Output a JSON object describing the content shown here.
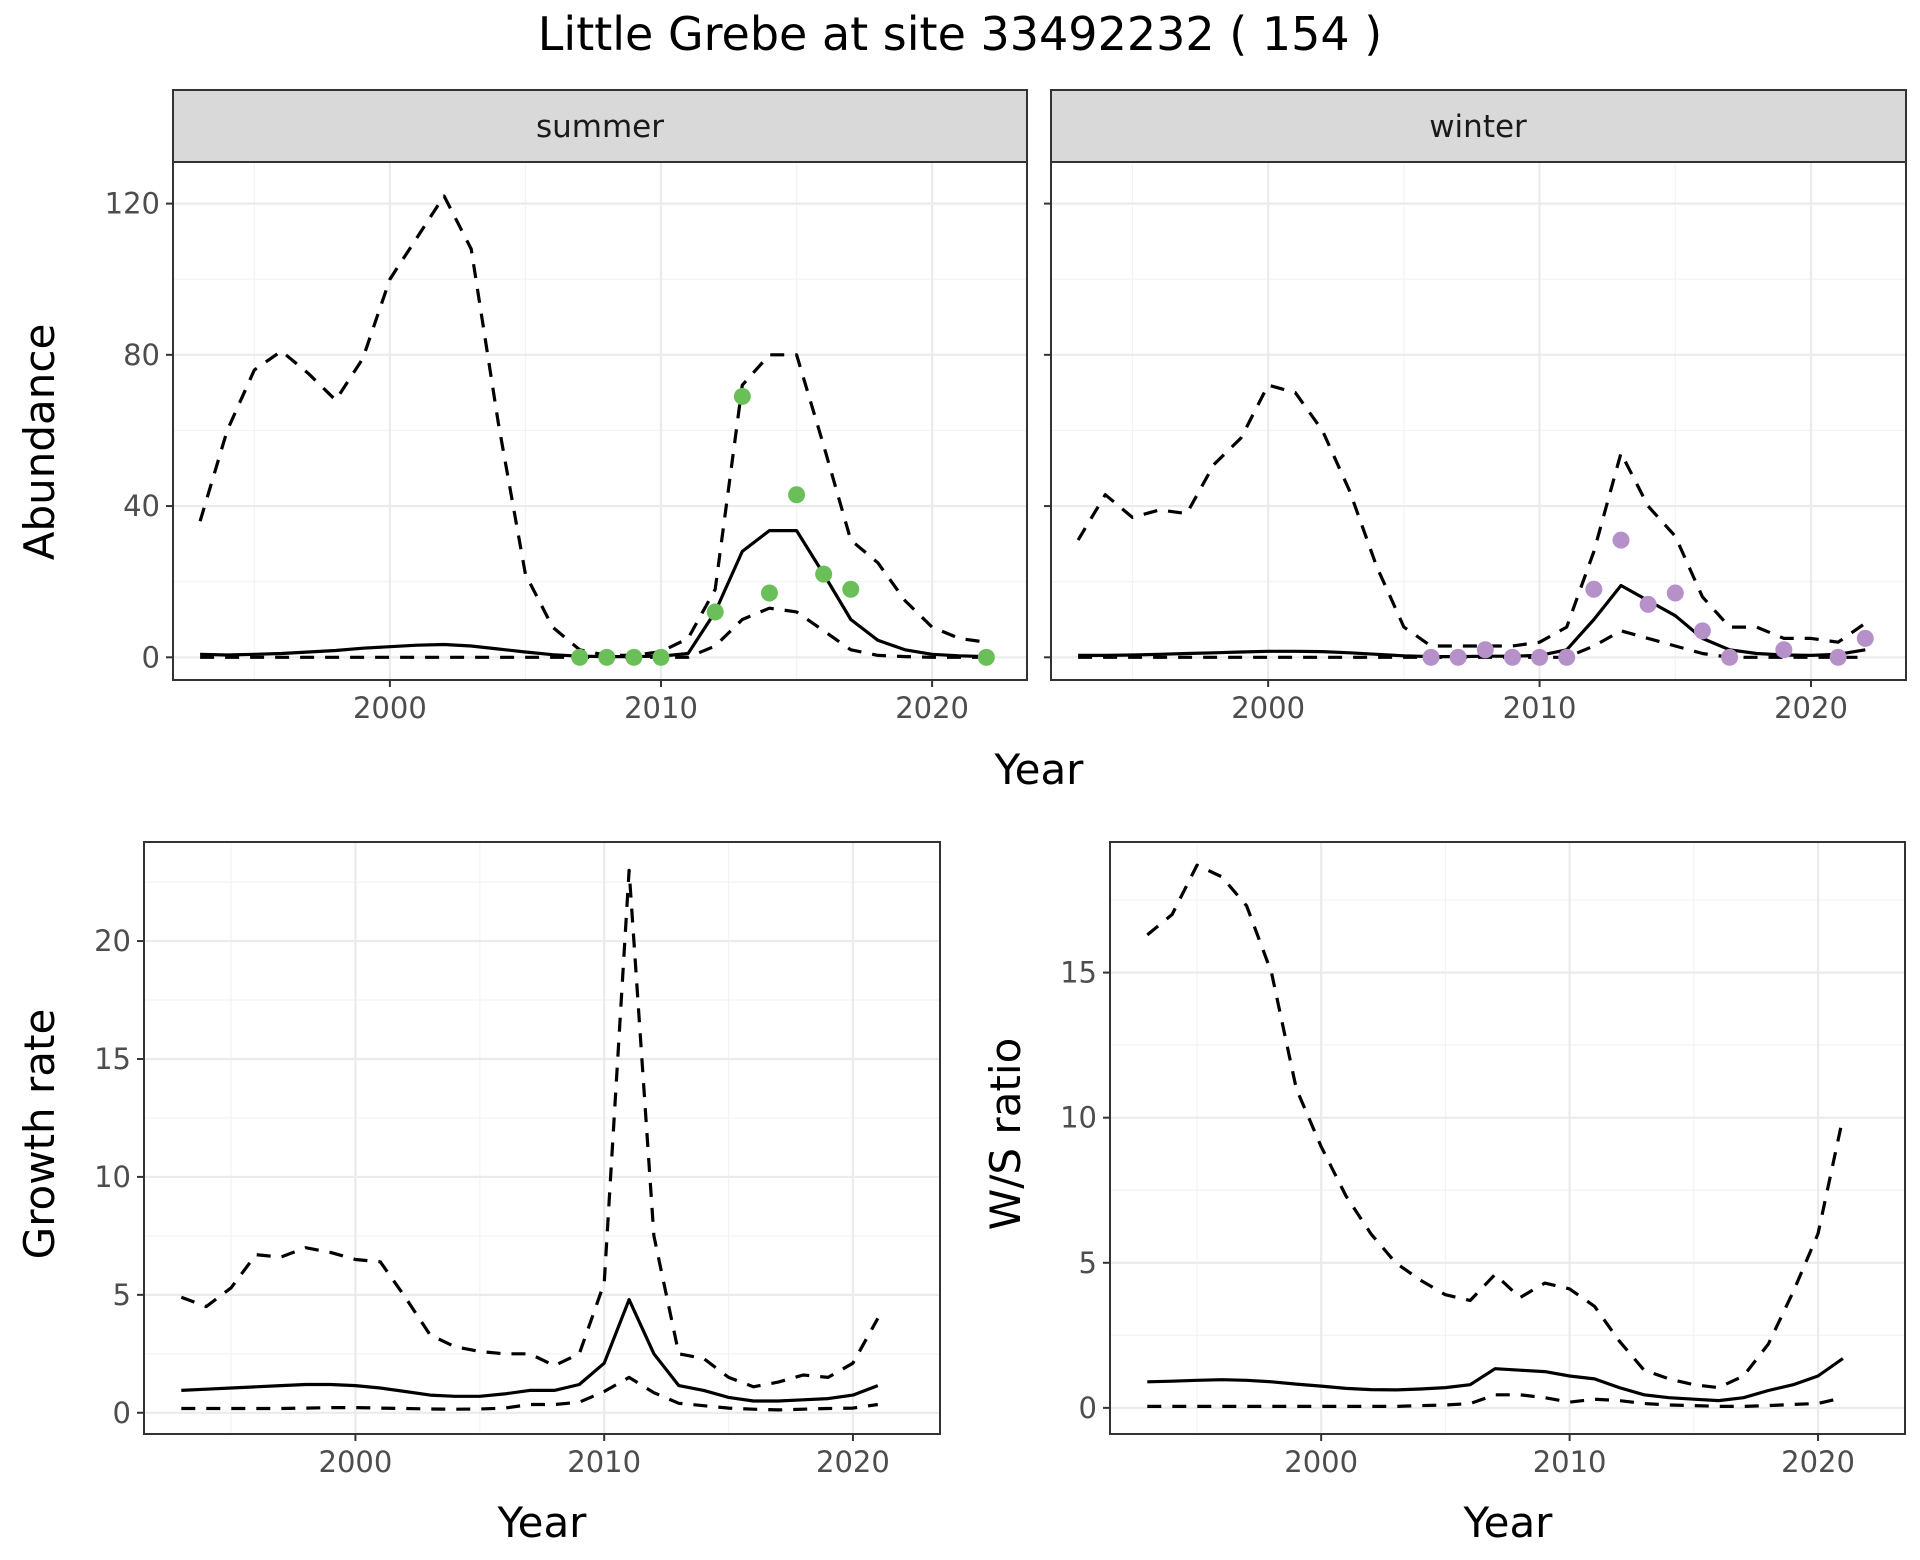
{
  "title": "Little Grebe at site 33492232 ( 154 )",
  "colors": {
    "summer_points": "#6abf59",
    "winter_points": "#b590c9"
  },
  "chart_data": [
    {
      "type": "line",
      "panel": "summer",
      "strip_label": "summer",
      "xlabel": "Year",
      "ylabel": "Abundance",
      "xlim": [
        1992,
        2023.5
      ],
      "ylim": [
        -6,
        131
      ],
      "x_ticks": [
        2000,
        2010,
        2020
      ],
      "x_tick_labels": [
        "2000",
        "2010",
        "2020"
      ],
      "y_ticks": [
        0,
        40,
        80,
        120
      ],
      "y_tick_labels": [
        "0",
        "40",
        "80",
        "120"
      ],
      "x": [
        1993,
        1994,
        1995,
        1996,
        1997,
        1998,
        1999,
        2000,
        2001,
        2002,
        2003,
        2004,
        2005,
        2006,
        2007,
        2008,
        2009,
        2010,
        2011,
        2012,
        2013,
        2014,
        2015,
        2016,
        2017,
        2018,
        2019,
        2020,
        2021,
        2022
      ],
      "series": [
        {
          "name": "estimate",
          "style": "solid",
          "values": [
            0.8,
            0.6,
            0.8,
            1.0,
            1.4,
            1.8,
            2.4,
            2.8,
            3.2,
            3.4,
            3.0,
            2.2,
            1.4,
            0.7,
            0.3,
            0.2,
            0.2,
            0.3,
            1.0,
            12,
            28,
            33.5,
            33.5,
            22,
            10,
            4.5,
            2,
            0.8,
            0.4,
            0.2
          ]
        },
        {
          "name": "upper",
          "style": "dashed",
          "values": [
            36,
            60,
            76,
            81,
            75,
            68,
            79,
            100,
            111,
            122,
            108,
            62,
            22,
            8,
            2,
            0.5,
            0.5,
            1.5,
            5,
            18,
            72,
            80,
            80,
            56,
            31,
            25,
            15,
            8,
            5,
            4
          ]
        },
        {
          "name": "lower",
          "style": "dashed",
          "values": [
            0,
            0,
            0,
            0,
            0,
            0,
            0,
            0,
            0,
            0,
            0,
            0,
            0,
            0,
            0,
            0,
            0,
            0,
            0,
            3,
            10,
            13,
            12,
            7,
            2,
            0.5,
            0.2,
            0,
            0,
            0
          ]
        }
      ],
      "points": {
        "x": [
          2007,
          2008,
          2009,
          2010,
          2012,
          2013,
          2014,
          2015,
          2016,
          2017,
          2022
        ],
        "y": [
          0,
          0,
          0,
          0,
          12,
          69,
          17,
          43,
          22,
          18,
          0
        ]
      }
    },
    {
      "type": "line",
      "panel": "winter",
      "strip_label": "winter",
      "xlabel": "Year",
      "ylabel": "",
      "xlim": [
        1992,
        2023.5
      ],
      "ylim": [
        -6,
        131
      ],
      "x_ticks": [
        2000,
        2010,
        2020
      ],
      "x_tick_labels": [
        "2000",
        "2010",
        "2020"
      ],
      "y_ticks": [
        0,
        40,
        80,
        120
      ],
      "y_tick_labels": [],
      "x": [
        1993,
        1994,
        1995,
        1996,
        1997,
        1998,
        1999,
        2000,
        2001,
        2002,
        2003,
        2004,
        2005,
        2006,
        2007,
        2008,
        2009,
        2010,
        2011,
        2012,
        2013,
        2014,
        2015,
        2016,
        2017,
        2018,
        2019,
        2020,
        2021,
        2022
      ],
      "series": [
        {
          "name": "estimate",
          "style": "solid",
          "values": [
            0.5,
            0.5,
            0.6,
            0.8,
            1.0,
            1.2,
            1.4,
            1.6,
            1.6,
            1.5,
            1.2,
            0.8,
            0.4,
            0.2,
            0.2,
            0.3,
            0.3,
            0.5,
            2,
            10,
            19,
            15,
            11,
            5,
            2,
            1,
            0.6,
            0.5,
            0.8,
            2
          ]
        },
        {
          "name": "upper",
          "style": "dashed",
          "values": [
            31,
            43,
            37,
            39,
            38,
            51,
            58,
            72,
            70,
            60,
            44,
            24,
            8,
            3,
            3,
            3,
            3,
            4,
            8,
            28,
            54,
            40,
            32,
            16,
            8,
            8,
            5,
            5,
            4,
            9
          ]
        },
        {
          "name": "lower",
          "style": "dashed",
          "values": [
            0,
            0,
            0,
            0,
            0,
            0,
            0,
            0,
            0,
            0,
            0,
            0,
            0,
            0,
            0,
            0,
            0,
            0,
            0,
            3,
            7,
            5,
            3,
            1,
            0,
            0,
            0,
            0,
            0,
            0
          ]
        }
      ],
      "points": {
        "x": [
          2006,
          2007,
          2008,
          2009,
          2010,
          2011,
          2012,
          2013,
          2014,
          2015,
          2016,
          2017,
          2019,
          2021,
          2022
        ],
        "y": [
          0,
          0,
          2,
          0,
          0,
          0,
          18,
          31,
          14,
          17,
          7,
          0,
          2,
          0,
          5
        ]
      }
    },
    {
      "type": "line",
      "panel": "growth",
      "xlabel": "Year",
      "ylabel": "Growth rate",
      "xlim": [
        1991.5,
        2023.5
      ],
      "ylim": [
        -0.9,
        24.2
      ],
      "x_ticks": [
        2000,
        2010,
        2020
      ],
      "x_tick_labels": [
        "2000",
        "2010",
        "2020"
      ],
      "y_ticks": [
        0,
        5,
        10,
        15,
        20
      ],
      "y_tick_labels": [
        "0",
        "5",
        "10",
        "15",
        "20"
      ],
      "x": [
        1993,
        1994,
        1995,
        1996,
        1997,
        1998,
        1999,
        2000,
        2001,
        2002,
        2003,
        2004,
        2005,
        2006,
        2007,
        2008,
        2009,
        2010,
        2011,
        2012,
        2013,
        2014,
        2015,
        2016,
        2017,
        2018,
        2019,
        2020,
        2021
      ],
      "series": [
        {
          "name": "estimate",
          "style": "solid",
          "values": [
            0.95,
            1.0,
            1.05,
            1.1,
            1.15,
            1.2,
            1.2,
            1.15,
            1.05,
            0.9,
            0.75,
            0.7,
            0.7,
            0.8,
            0.95,
            0.95,
            1.2,
            2.1,
            4.8,
            2.5,
            1.15,
            0.95,
            0.65,
            0.5,
            0.5,
            0.55,
            0.6,
            0.75,
            1.15
          ]
        },
        {
          "name": "upper",
          "style": "dashed",
          "values": [
            4.9,
            4.5,
            5.3,
            6.7,
            6.6,
            7.0,
            6.8,
            6.5,
            6.4,
            4.9,
            3.3,
            2.8,
            2.6,
            2.5,
            2.5,
            2.0,
            2.5,
            5.5,
            23.0,
            7.5,
            2.5,
            2.3,
            1.5,
            1.1,
            1.3,
            1.6,
            1.5,
            2.1,
            4.0
          ]
        },
        {
          "name": "lower",
          "style": "dashed",
          "values": [
            0.18,
            0.18,
            0.18,
            0.18,
            0.18,
            0.2,
            0.22,
            0.22,
            0.2,
            0.18,
            0.16,
            0.15,
            0.16,
            0.2,
            0.35,
            0.35,
            0.45,
            0.9,
            1.5,
            0.85,
            0.4,
            0.3,
            0.2,
            0.15,
            0.12,
            0.15,
            0.18,
            0.2,
            0.35
          ]
        }
      ]
    },
    {
      "type": "line",
      "panel": "ws_ratio",
      "xlabel": "Year",
      "ylabel": "W/S ratio",
      "xlim": [
        1991.5,
        2023.5
      ],
      "ylim": [
        -0.9,
        19.5
      ],
      "x_ticks": [
        2000,
        2010,
        2020
      ],
      "x_tick_labels": [
        "2000",
        "2010",
        "2020"
      ],
      "y_ticks": [
        0,
        5,
        10,
        15
      ],
      "y_tick_labels": [
        "0",
        "5",
        "10",
        "15"
      ],
      "x": [
        1993,
        1994,
        1995,
        1996,
        1997,
        1998,
        1999,
        2000,
        2001,
        2002,
        2003,
        2004,
        2005,
        2006,
        2007,
        2008,
        2009,
        2010,
        2011,
        2012,
        2013,
        2014,
        2015,
        2016,
        2017,
        2018,
        2019,
        2020,
        2021
      ],
      "series": [
        {
          "name": "estimate",
          "style": "solid",
          "values": [
            0.9,
            0.92,
            0.95,
            0.97,
            0.95,
            0.9,
            0.82,
            0.75,
            0.67,
            0.63,
            0.62,
            0.65,
            0.7,
            0.8,
            1.35,
            1.3,
            1.25,
            1.1,
            1.0,
            0.7,
            0.45,
            0.35,
            0.3,
            0.25,
            0.35,
            0.6,
            0.8,
            1.1,
            1.7
          ]
        },
        {
          "name": "upper",
          "style": "dashed",
          "values": [
            16.3,
            17,
            18.7,
            18.3,
            17.3,
            15,
            11,
            9,
            7.3,
            6,
            5,
            4.4,
            3.9,
            3.7,
            4.6,
            3.8,
            4.3,
            4.1,
            3.5,
            2.3,
            1.3,
            1.0,
            0.8,
            0.7,
            1.1,
            2.2,
            4,
            6,
            10
          ]
        },
        {
          "name": "lower",
          "style": "dashed",
          "values": [
            0.05,
            0.05,
            0.05,
            0.05,
            0.05,
            0.05,
            0.05,
            0.05,
            0.05,
            0.05,
            0.05,
            0.08,
            0.1,
            0.15,
            0.45,
            0.45,
            0.35,
            0.2,
            0.3,
            0.25,
            0.15,
            0.1,
            0.08,
            0.05,
            0.05,
            0.08,
            0.12,
            0.15,
            0.35
          ]
        }
      ]
    }
  ]
}
